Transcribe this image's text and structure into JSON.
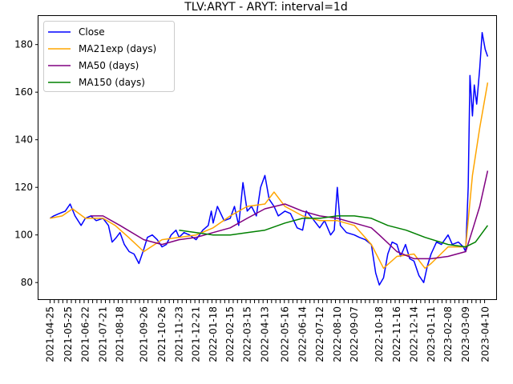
{
  "chart_data": {
    "type": "line",
    "title": "TLV:ARYT - ARYT: interval=1d",
    "xlabel": "",
    "ylabel": "",
    "ylim": [
      73,
      192
    ],
    "xlim": [
      "2021-04-06",
      "2023-04-28"
    ],
    "grid": false,
    "legend_position": "top-left",
    "y_ticks": [
      80,
      100,
      120,
      140,
      160,
      180
    ],
    "x_ticks": [
      "2021-04-25",
      "2021-05-25",
      "2021-06-22",
      "2021-07-21",
      "2021-08-18",
      "2021-09-26",
      "2021-10-26",
      "2021-11-23",
      "2021-12-21",
      "2022-01-18",
      "2022-02-15",
      "2022-03-15",
      "2022-04-13",
      "2022-05-16",
      "2022-06-14",
      "2022-07-12",
      "2022-08-10",
      "2022-09-07",
      "2022-10-18",
      "2022-11-16",
      "2022-12-14",
      "2023-01-11",
      "2023-02-08",
      "2023-03-09",
      "2023-04-10"
    ],
    "series": [
      {
        "name": "Close",
        "color": "#0000ff",
        "points": [
          [
            "2021-04-25",
            107
          ],
          [
            "2021-05-01",
            108
          ],
          [
            "2021-05-10",
            109
          ],
          [
            "2021-05-20",
            110
          ],
          [
            "2021-05-28",
            113
          ],
          [
            "2021-06-05",
            108
          ],
          [
            "2021-06-15",
            104
          ],
          [
            "2021-06-22",
            107
          ],
          [
            "2021-07-01",
            108
          ],
          [
            "2021-07-10",
            106
          ],
          [
            "2021-07-21",
            107
          ],
          [
            "2021-07-30",
            104
          ],
          [
            "2021-08-05",
            97
          ],
          [
            "2021-08-12",
            99
          ],
          [
            "2021-08-18",
            101
          ],
          [
            "2021-08-25",
            96
          ],
          [
            "2021-09-02",
            93
          ],
          [
            "2021-09-10",
            92
          ],
          [
            "2021-09-18",
            88
          ],
          [
            "2021-09-26",
            94
          ],
          [
            "2021-10-02",
            99
          ],
          [
            "2021-10-10",
            100
          ],
          [
            "2021-10-18",
            98
          ],
          [
            "2021-10-26",
            95
          ],
          [
            "2021-11-02",
            96
          ],
          [
            "2021-11-10",
            100
          ],
          [
            "2021-11-18",
            102
          ],
          [
            "2021-11-23",
            99
          ],
          [
            "2021-12-01",
            101
          ],
          [
            "2021-12-10",
            100
          ],
          [
            "2021-12-21",
            98
          ],
          [
            "2022-01-01",
            102
          ],
          [
            "2022-01-10",
            104
          ],
          [
            "2022-01-15",
            110
          ],
          [
            "2022-01-18",
            105
          ],
          [
            "2022-01-25",
            112
          ],
          [
            "2022-02-05",
            106
          ],
          [
            "2022-02-15",
            107
          ],
          [
            "2022-02-22",
            112
          ],
          [
            "2022-03-01",
            104
          ],
          [
            "2022-03-08",
            122
          ],
          [
            "2022-03-15",
            110
          ],
          [
            "2022-03-22",
            112
          ],
          [
            "2022-03-30",
            108
          ],
          [
            "2022-04-06",
            120
          ],
          [
            "2022-04-13",
            125
          ],
          [
            "2022-04-20",
            115
          ],
          [
            "2022-04-28",
            112
          ],
          [
            "2022-05-05",
            108
          ],
          [
            "2022-05-16",
            110
          ],
          [
            "2022-05-25",
            109
          ],
          [
            "2022-06-05",
            103
          ],
          [
            "2022-06-14",
            102
          ],
          [
            "2022-06-20",
            110
          ],
          [
            "2022-06-30",
            107
          ],
          [
            "2022-07-12",
            103
          ],
          [
            "2022-07-20",
            106
          ],
          [
            "2022-07-30",
            100
          ],
          [
            "2022-08-05",
            102
          ],
          [
            "2022-08-10",
            120
          ],
          [
            "2022-08-15",
            104
          ],
          [
            "2022-08-25",
            101
          ],
          [
            "2022-09-07",
            100
          ],
          [
            "2022-09-15",
            99
          ],
          [
            "2022-09-25",
            98
          ],
          [
            "2022-10-05",
            96
          ],
          [
            "2022-10-12",
            84
          ],
          [
            "2022-10-18",
            79
          ],
          [
            "2022-10-25",
            82
          ],
          [
            "2022-11-01",
            92
          ],
          [
            "2022-11-08",
            97
          ],
          [
            "2022-11-16",
            96
          ],
          [
            "2022-11-22",
            91
          ],
          [
            "2022-11-30",
            96
          ],
          [
            "2022-12-07",
            90
          ],
          [
            "2022-12-14",
            89
          ],
          [
            "2022-12-22",
            83
          ],
          [
            "2022-12-30",
            80
          ],
          [
            "2023-01-05",
            87
          ],
          [
            "2023-01-11",
            92
          ],
          [
            "2023-01-20",
            97
          ],
          [
            "2023-01-28",
            96
          ],
          [
            "2023-02-08",
            100
          ],
          [
            "2023-02-15",
            96
          ],
          [
            "2023-02-25",
            97
          ],
          [
            "2023-03-05",
            95
          ],
          [
            "2023-03-09",
            93
          ],
          [
            "2023-03-13",
            120
          ],
          [
            "2023-03-16",
            167
          ],
          [
            "2023-03-20",
            150
          ],
          [
            "2023-03-23",
            163
          ],
          [
            "2023-03-27",
            155
          ],
          [
            "2023-04-01",
            170
          ],
          [
            "2023-04-05",
            185
          ],
          [
            "2023-04-10",
            178
          ],
          [
            "2023-04-14",
            175
          ]
        ]
      },
      {
        "name": "MA21exp (days)",
        "color": "#ffa500",
        "points": [
          [
            "2021-04-25",
            107
          ],
          [
            "2021-05-15",
            108
          ],
          [
            "2021-06-01",
            111
          ],
          [
            "2021-06-22",
            107
          ],
          [
            "2021-07-21",
            107
          ],
          [
            "2021-08-10",
            104
          ],
          [
            "2021-09-01",
            99
          ],
          [
            "2021-09-26",
            93
          ],
          [
            "2021-10-26",
            98
          ],
          [
            "2021-11-23",
            99
          ],
          [
            "2021-12-21",
            100
          ],
          [
            "2022-01-18",
            103
          ],
          [
            "2022-02-15",
            108
          ],
          [
            "2022-03-15",
            112
          ],
          [
            "2022-04-13",
            113
          ],
          [
            "2022-04-28",
            118
          ],
          [
            "2022-05-16",
            112
          ],
          [
            "2022-06-14",
            108
          ],
          [
            "2022-07-12",
            106
          ],
          [
            "2022-08-10",
            106
          ],
          [
            "2022-09-07",
            104
          ],
          [
            "2022-10-05",
            96
          ],
          [
            "2022-10-25",
            86
          ],
          [
            "2022-11-16",
            91
          ],
          [
            "2022-12-14",
            92
          ],
          [
            "2023-01-01",
            86
          ],
          [
            "2023-01-11",
            88
          ],
          [
            "2023-02-08",
            95
          ],
          [
            "2023-03-09",
            95
          ],
          [
            "2023-03-20",
            125
          ],
          [
            "2023-04-01",
            145
          ],
          [
            "2023-04-14",
            164
          ]
        ]
      },
      {
        "name": "MA50 (days)",
        "color": "#800080",
        "points": [
          [
            "2021-07-01",
            108
          ],
          [
            "2021-07-21",
            108
          ],
          [
            "2021-08-18",
            104
          ],
          [
            "2021-09-26",
            98
          ],
          [
            "2021-10-26",
            96
          ],
          [
            "2021-11-23",
            98
          ],
          [
            "2021-12-21",
            99
          ],
          [
            "2022-01-18",
            101
          ],
          [
            "2022-02-15",
            103
          ],
          [
            "2022-03-15",
            107
          ],
          [
            "2022-04-13",
            111
          ],
          [
            "2022-05-16",
            113
          ],
          [
            "2022-06-14",
            110
          ],
          [
            "2022-07-12",
            108
          ],
          [
            "2022-08-10",
            107
          ],
          [
            "2022-09-07",
            105
          ],
          [
            "2022-10-05",
            103
          ],
          [
            "2022-10-18",
            100
          ],
          [
            "2022-11-16",
            93
          ],
          [
            "2022-12-14",
            90
          ],
          [
            "2023-01-11",
            90
          ],
          [
            "2023-02-08",
            91
          ],
          [
            "2023-03-09",
            93
          ],
          [
            "2023-03-20",
            102
          ],
          [
            "2023-04-01",
            112
          ],
          [
            "2023-04-14",
            127
          ]
        ]
      },
      {
        "name": "MA150 (days)",
        "color": "#008000",
        "points": [
          [
            "2021-11-23",
            102
          ],
          [
            "2021-12-21",
            101
          ],
          [
            "2022-01-18",
            100
          ],
          [
            "2022-02-15",
            100
          ],
          [
            "2022-03-15",
            101
          ],
          [
            "2022-04-13",
            102
          ],
          [
            "2022-05-16",
            105
          ],
          [
            "2022-06-14",
            107
          ],
          [
            "2022-07-12",
            107
          ],
          [
            "2022-08-10",
            108
          ],
          [
            "2022-09-07",
            108
          ],
          [
            "2022-10-05",
            107
          ],
          [
            "2022-11-01",
            104
          ],
          [
            "2022-12-01",
            102
          ],
          [
            "2023-01-01",
            99
          ],
          [
            "2023-02-08",
            96
          ],
          [
            "2023-03-09",
            95
          ],
          [
            "2023-03-25",
            97
          ],
          [
            "2023-04-14",
            104
          ]
        ]
      }
    ]
  }
}
